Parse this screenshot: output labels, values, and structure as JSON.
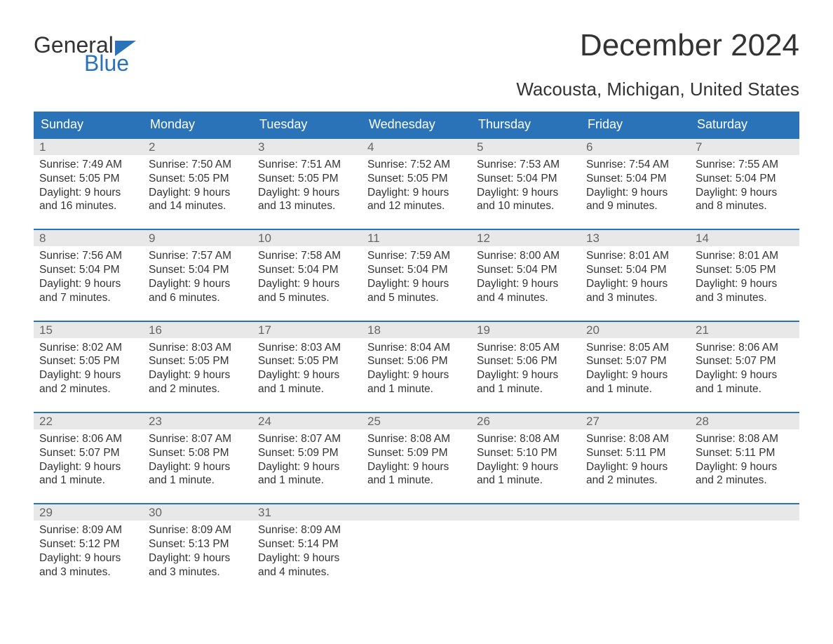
{
  "logo": {
    "word1": "General",
    "word2": "Blue",
    "accent_color": "#2b73b8"
  },
  "title": "December 2024",
  "subtitle": "Wacousta, Michigan, United States",
  "colors": {
    "header_bg": "#2b73b8",
    "header_text": "#ffffff",
    "daynum_bg": "#e8e8e8",
    "daynum_text": "#666666",
    "body_text": "#333333",
    "page_bg": "#ffffff",
    "week_border": "#2b73b8"
  },
  "typography": {
    "title_fontsize": 44,
    "subtitle_fontsize": 26,
    "header_fontsize": 18,
    "daynum_fontsize": 17,
    "cell_fontsize": 15.5
  },
  "calendar": {
    "type": "table",
    "day_headers": [
      "Sunday",
      "Monday",
      "Tuesday",
      "Wednesday",
      "Thursday",
      "Friday",
      "Saturday"
    ],
    "weeks": [
      [
        {
          "n": "1",
          "sunrise": "Sunrise: 7:49 AM",
          "sunset": "Sunset: 5:05 PM",
          "d1": "Daylight: 9 hours",
          "d2": "and 16 minutes."
        },
        {
          "n": "2",
          "sunrise": "Sunrise: 7:50 AM",
          "sunset": "Sunset: 5:05 PM",
          "d1": "Daylight: 9 hours",
          "d2": "and 14 minutes."
        },
        {
          "n": "3",
          "sunrise": "Sunrise: 7:51 AM",
          "sunset": "Sunset: 5:05 PM",
          "d1": "Daylight: 9 hours",
          "d2": "and 13 minutes."
        },
        {
          "n": "4",
          "sunrise": "Sunrise: 7:52 AM",
          "sunset": "Sunset: 5:05 PM",
          "d1": "Daylight: 9 hours",
          "d2": "and 12 minutes."
        },
        {
          "n": "5",
          "sunrise": "Sunrise: 7:53 AM",
          "sunset": "Sunset: 5:04 PM",
          "d1": "Daylight: 9 hours",
          "d2": "and 10 minutes."
        },
        {
          "n": "6",
          "sunrise": "Sunrise: 7:54 AM",
          "sunset": "Sunset: 5:04 PM",
          "d1": "Daylight: 9 hours",
          "d2": "and 9 minutes."
        },
        {
          "n": "7",
          "sunrise": "Sunrise: 7:55 AM",
          "sunset": "Sunset: 5:04 PM",
          "d1": "Daylight: 9 hours",
          "d2": "and 8 minutes."
        }
      ],
      [
        {
          "n": "8",
          "sunrise": "Sunrise: 7:56 AM",
          "sunset": "Sunset: 5:04 PM",
          "d1": "Daylight: 9 hours",
          "d2": "and 7 minutes."
        },
        {
          "n": "9",
          "sunrise": "Sunrise: 7:57 AM",
          "sunset": "Sunset: 5:04 PM",
          "d1": "Daylight: 9 hours",
          "d2": "and 6 minutes."
        },
        {
          "n": "10",
          "sunrise": "Sunrise: 7:58 AM",
          "sunset": "Sunset: 5:04 PM",
          "d1": "Daylight: 9 hours",
          "d2": "and 5 minutes."
        },
        {
          "n": "11",
          "sunrise": "Sunrise: 7:59 AM",
          "sunset": "Sunset: 5:04 PM",
          "d1": "Daylight: 9 hours",
          "d2": "and 5 minutes."
        },
        {
          "n": "12",
          "sunrise": "Sunrise: 8:00 AM",
          "sunset": "Sunset: 5:04 PM",
          "d1": "Daylight: 9 hours",
          "d2": "and 4 minutes."
        },
        {
          "n": "13",
          "sunrise": "Sunrise: 8:01 AM",
          "sunset": "Sunset: 5:04 PM",
          "d1": "Daylight: 9 hours",
          "d2": "and 3 minutes."
        },
        {
          "n": "14",
          "sunrise": "Sunrise: 8:01 AM",
          "sunset": "Sunset: 5:05 PM",
          "d1": "Daylight: 9 hours",
          "d2": "and 3 minutes."
        }
      ],
      [
        {
          "n": "15",
          "sunrise": "Sunrise: 8:02 AM",
          "sunset": "Sunset: 5:05 PM",
          "d1": "Daylight: 9 hours",
          "d2": "and 2 minutes."
        },
        {
          "n": "16",
          "sunrise": "Sunrise: 8:03 AM",
          "sunset": "Sunset: 5:05 PM",
          "d1": "Daylight: 9 hours",
          "d2": "and 2 minutes."
        },
        {
          "n": "17",
          "sunrise": "Sunrise: 8:03 AM",
          "sunset": "Sunset: 5:05 PM",
          "d1": "Daylight: 9 hours",
          "d2": "and 1 minute."
        },
        {
          "n": "18",
          "sunrise": "Sunrise: 8:04 AM",
          "sunset": "Sunset: 5:06 PM",
          "d1": "Daylight: 9 hours",
          "d2": "and 1 minute."
        },
        {
          "n": "19",
          "sunrise": "Sunrise: 8:05 AM",
          "sunset": "Sunset: 5:06 PM",
          "d1": "Daylight: 9 hours",
          "d2": "and 1 minute."
        },
        {
          "n": "20",
          "sunrise": "Sunrise: 8:05 AM",
          "sunset": "Sunset: 5:07 PM",
          "d1": "Daylight: 9 hours",
          "d2": "and 1 minute."
        },
        {
          "n": "21",
          "sunrise": "Sunrise: 8:06 AM",
          "sunset": "Sunset: 5:07 PM",
          "d1": "Daylight: 9 hours",
          "d2": "and 1 minute."
        }
      ],
      [
        {
          "n": "22",
          "sunrise": "Sunrise: 8:06 AM",
          "sunset": "Sunset: 5:07 PM",
          "d1": "Daylight: 9 hours",
          "d2": "and 1 minute."
        },
        {
          "n": "23",
          "sunrise": "Sunrise: 8:07 AM",
          "sunset": "Sunset: 5:08 PM",
          "d1": "Daylight: 9 hours",
          "d2": "and 1 minute."
        },
        {
          "n": "24",
          "sunrise": "Sunrise: 8:07 AM",
          "sunset": "Sunset: 5:09 PM",
          "d1": "Daylight: 9 hours",
          "d2": "and 1 minute."
        },
        {
          "n": "25",
          "sunrise": "Sunrise: 8:08 AM",
          "sunset": "Sunset: 5:09 PM",
          "d1": "Daylight: 9 hours",
          "d2": "and 1 minute."
        },
        {
          "n": "26",
          "sunrise": "Sunrise: 8:08 AM",
          "sunset": "Sunset: 5:10 PM",
          "d1": "Daylight: 9 hours",
          "d2": "and 1 minute."
        },
        {
          "n": "27",
          "sunrise": "Sunrise: 8:08 AM",
          "sunset": "Sunset: 5:11 PM",
          "d1": "Daylight: 9 hours",
          "d2": "and 2 minutes."
        },
        {
          "n": "28",
          "sunrise": "Sunrise: 8:08 AM",
          "sunset": "Sunset: 5:11 PM",
          "d1": "Daylight: 9 hours",
          "d2": "and 2 minutes."
        }
      ],
      [
        {
          "n": "29",
          "sunrise": "Sunrise: 8:09 AM",
          "sunset": "Sunset: 5:12 PM",
          "d1": "Daylight: 9 hours",
          "d2": "and 3 minutes."
        },
        {
          "n": "30",
          "sunrise": "Sunrise: 8:09 AM",
          "sunset": "Sunset: 5:13 PM",
          "d1": "Daylight: 9 hours",
          "d2": "and 3 minutes."
        },
        {
          "n": "31",
          "sunrise": "Sunrise: 8:09 AM",
          "sunset": "Sunset: 5:14 PM",
          "d1": "Daylight: 9 hours",
          "d2": "and 4 minutes."
        },
        null,
        null,
        null,
        null
      ]
    ]
  }
}
